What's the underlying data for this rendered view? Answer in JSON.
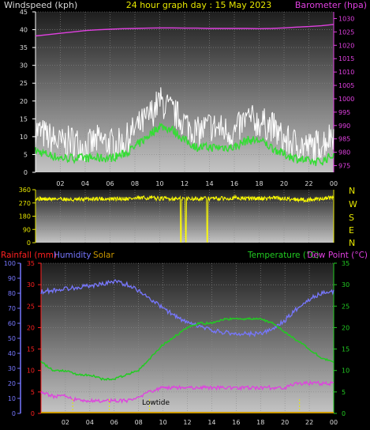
{
  "header": {
    "left_label": "Windspeed (kph)",
    "center_label": "24 hour graph day : 15 May 2023",
    "right_label": "Barometer (hpa)"
  },
  "wind_dir_letters": [
    "N",
    "W",
    "S",
    "E",
    "N"
  ],
  "lower_header": {
    "rainfall": "Rainfall (mm)",
    "humidity": "Humidity",
    "solar": "Solar",
    "temperature": "Temperature (°C)",
    "dewpoint": "Dew Point (°C)"
  },
  "lowtide_label": "Lowtide",
  "colors": {
    "wind_gust": "#ffffff",
    "wind_avg": "#33dd33",
    "barometer": "#e040e0",
    "direction": "#ffff00",
    "humidity": "#7777ff",
    "temperature": "#22cc22",
    "dewpoint": "#e040e0",
    "rainfall": "#ff2020",
    "solar": "#cc9900"
  },
  "chart_data": [
    {
      "type": "line",
      "panel": "wind-barometer",
      "x_ticks": [
        "02",
        "04",
        "06",
        "08",
        "10",
        "12",
        "14",
        "16",
        "18",
        "20",
        "22",
        "00"
      ],
      "y_left_ticks": [
        "0",
        "5",
        "10",
        "15",
        "20",
        "25",
        "30",
        "35",
        "40",
        "45"
      ],
      "y_left_range": [
        0,
        45
      ],
      "y_right_ticks": [
        "975",
        "980",
        "985",
        "990",
        "995",
        "1000",
        "1005",
        "1010",
        "1015",
        "1020",
        "1025",
        "1030"
      ],
      "y_right_range": [
        972.5,
        1032.5
      ],
      "hours": [
        0,
        1,
        2,
        3,
        4,
        5,
        6,
        7,
        8,
        9,
        10,
        11,
        12,
        13,
        14,
        15,
        16,
        17,
        18,
        19,
        20,
        21,
        22,
        23,
        24
      ],
      "series": [
        {
          "values": [
            12,
            10,
            8,
            9,
            7,
            9,
            8,
            8,
            12,
            15,
            20,
            17,
            14,
            11,
            13,
            12,
            11,
            15,
            14,
            13,
            9,
            8,
            7,
            8,
            11
          ]
        },
        {
          "values": [
            6,
            5,
            4,
            4,
            4,
            4,
            4,
            5,
            7,
            10,
            13,
            12,
            9,
            7,
            7,
            7,
            7,
            9,
            9,
            7,
            5,
            4,
            3,
            3,
            5
          ]
        },
        {
          "values": [
            1023.5,
            1024,
            1024.5,
            1025,
            1025.5,
            1025.8,
            1026,
            1026.2,
            1026.3,
            1026.4,
            1026.5,
            1026.5,
            1026.4,
            1026.4,
            1026.3,
            1026.3,
            1026.3,
            1026.3,
            1026.2,
            1026.3,
            1026.5,
            1026.8,
            1027,
            1027.3,
            1027.8
          ]
        }
      ]
    },
    {
      "type": "line",
      "panel": "wind-direction",
      "x_ticks": [],
      "y_ticks": [
        "0",
        "90",
        "180",
        "270",
        "360"
      ],
      "y_range": [
        0,
        360
      ],
      "hours": [
        0,
        1,
        2,
        3,
        4,
        5,
        6,
        7,
        8,
        9,
        10,
        11,
        12,
        13,
        14,
        15,
        16,
        17,
        18,
        19,
        20,
        21,
        22,
        23,
        24
      ],
      "series": [
        {
          "values": [
            300,
            295,
            300,
            290,
            295,
            300,
            295,
            300,
            300,
            305,
            300,
            300,
            300,
            300,
            300,
            300,
            305,
            300,
            300,
            305,
            300,
            295,
            290,
            300,
            305
          ]
        }
      ]
    },
    {
      "type": "line",
      "panel": "humidity-temperature",
      "x_ticks": [
        "02",
        "04",
        "06",
        "08",
        "10",
        "12",
        "14",
        "16",
        "18",
        "20",
        "22",
        "00"
      ],
      "y_humidity_ticks": [
        "0",
        "10",
        "20",
        "30",
        "40",
        "50",
        "60",
        "70",
        "80",
        "90",
        "100"
      ],
      "y_humidity_range": [
        0,
        100
      ],
      "y_rain_ticks": [
        "0",
        "5",
        "10",
        "15",
        "20",
        "25",
        "30",
        "35"
      ],
      "y_rain_range": [
        0,
        35
      ],
      "y_temp_ticks": [
        "0",
        "5",
        "10",
        "15",
        "20",
        "25",
        "30",
        "35"
      ],
      "y_temp_range": [
        0,
        35
      ],
      "hours": [
        0,
        1,
        2,
        3,
        4,
        5,
        6,
        7,
        8,
        9,
        10,
        11,
        12,
        13,
        14,
        15,
        16,
        17,
        18,
        19,
        20,
        21,
        22,
        23,
        24
      ],
      "series": [
        {
          "values": [
            81,
            82,
            83,
            84,
            85,
            86,
            88,
            86,
            82,
            76,
            70,
            65,
            60,
            58,
            55,
            54,
            53,
            53,
            53,
            56,
            62,
            70,
            76,
            80,
            81
          ]
        },
        {
          "values": [
            12,
            10,
            10,
            9,
            9,
            8,
            8,
            9,
            10,
            13,
            16,
            18,
            20,
            21,
            21,
            22,
            22,
            22,
            22,
            21,
            19,
            17,
            15,
            13,
            12
          ]
        },
        {
          "values": [
            5,
            4,
            4,
            3,
            3,
            3,
            3,
            3,
            4,
            5,
            6,
            6,
            6,
            6,
            6,
            6,
            6,
            6,
            6,
            6,
            6,
            7,
            7,
            7,
            7
          ]
        }
      ]
    }
  ]
}
